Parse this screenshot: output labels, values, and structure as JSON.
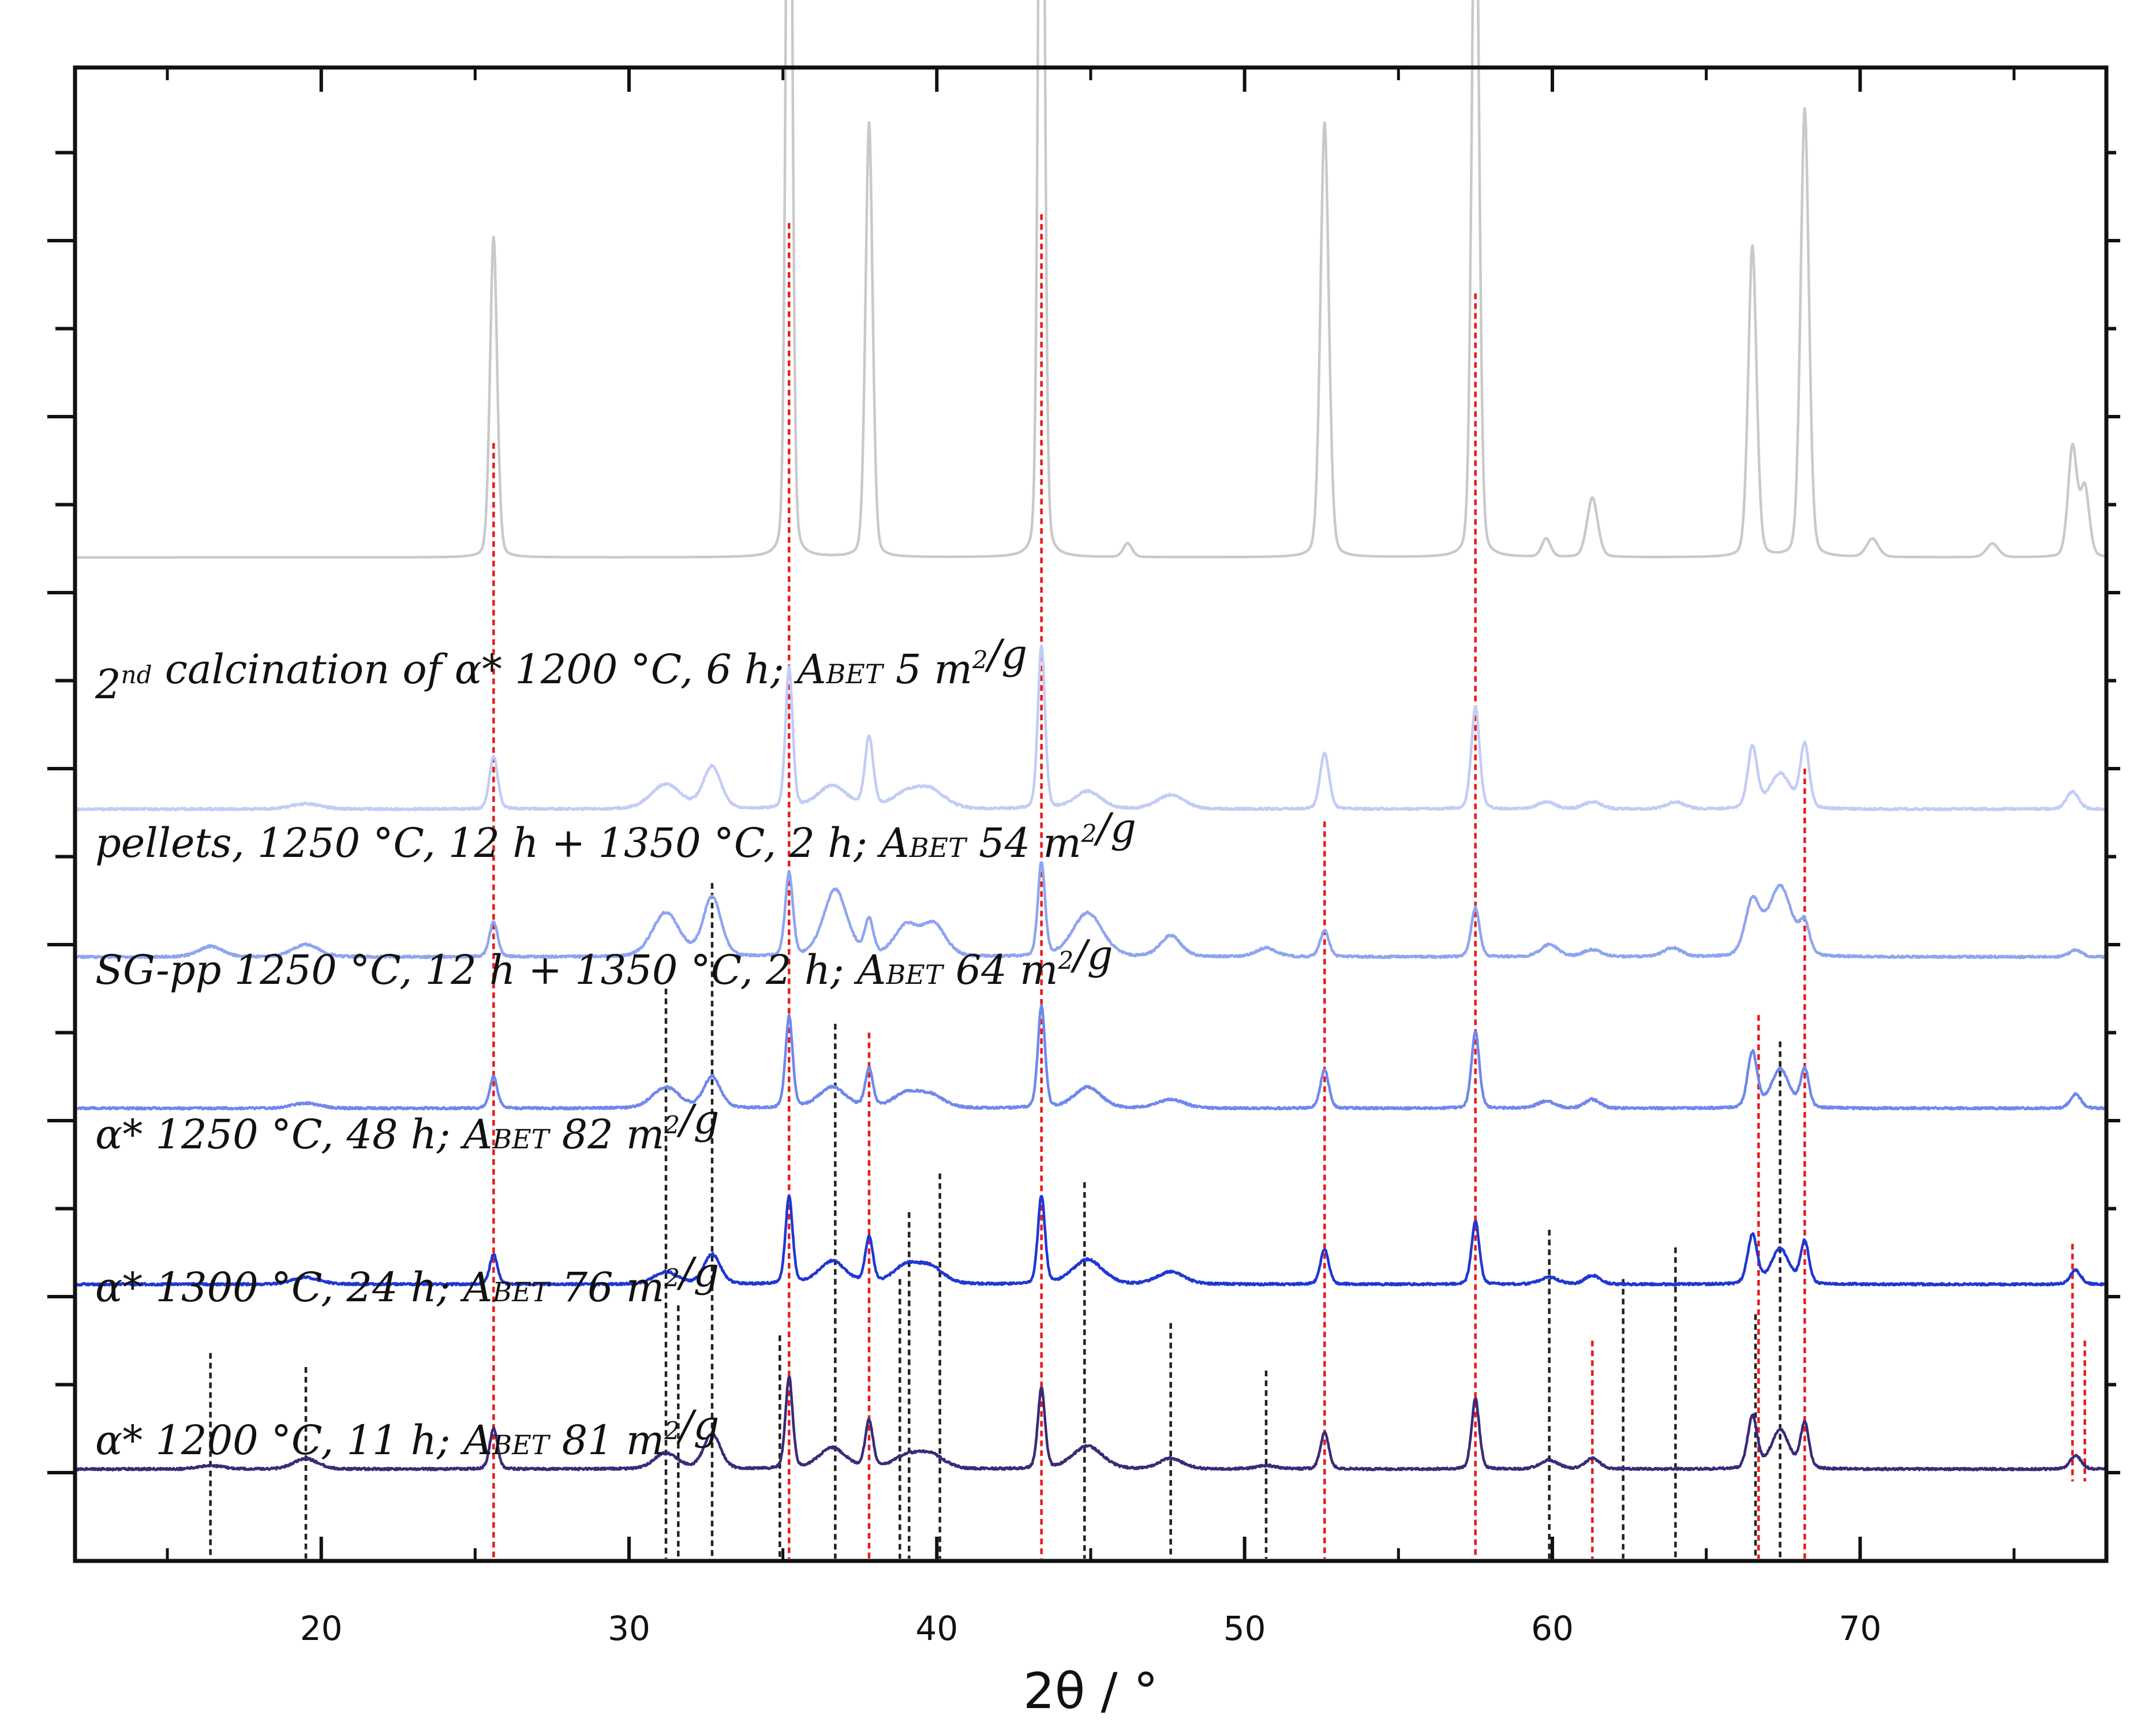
{
  "chart_data": {
    "type": "line",
    "title": "",
    "xlabel": "2θ / °",
    "ylabel": "",
    "xlim": [
      12,
      78
    ],
    "x_ticks": [
      20,
      30,
      40,
      50,
      60,
      70
    ],
    "x_minor_ticks": [
      15,
      25,
      35,
      45,
      55,
      65,
      75
    ],
    "y_ticks_shown": false,
    "grid": false,
    "legend": "labels written next to each trace",
    "colors": {
      "reference_red": "#e81c1c",
      "reference_black": "#222222"
    },
    "series": [
      {
        "name": "calcination",
        "label_parts": [
          "2",
          "nd",
          " calcination of α* 1200 °C, 6 h; A",
          "BET",
          " 5 m",
          "2",
          "/g"
        ],
        "color": "#c9c9c9",
        "offset": 5.2,
        "scale": 2.6,
        "background": 0.0,
        "peaks": [
          [
            25.6,
            0.7,
            0.12
          ],
          [
            35.2,
            2.2,
            0.1
          ],
          [
            37.8,
            0.95,
            0.12
          ],
          [
            43.4,
            2.3,
            0.1
          ],
          [
            46.2,
            0.03,
            0.15
          ],
          [
            52.6,
            0.95,
            0.14
          ],
          [
            57.5,
            1.65,
            0.12
          ],
          [
            59.8,
            0.04,
            0.15
          ],
          [
            61.3,
            0.13,
            0.18
          ],
          [
            66.5,
            0.68,
            0.14
          ],
          [
            68.2,
            0.98,
            0.14
          ],
          [
            70.4,
            0.04,
            0.2
          ],
          [
            74.3,
            0.03,
            0.2
          ],
          [
            76.9,
            0.24,
            0.15
          ],
          [
            77.3,
            0.15,
            0.15
          ]
        ]
      },
      {
        "name": "pellets",
        "label_parts": [
          "pellets, 1250 °C, 12 h + 1350 °C, 2 h; A",
          "BET",
          " 54 m",
          "2",
          "/g"
        ],
        "color": "#c2ccf6",
        "offset": 3.75,
        "scale": 1.0,
        "background": 0.02,
        "peaks": [
          [
            19.5,
            0.03,
            0.5
          ],
          [
            25.6,
            0.3,
            0.14
          ],
          [
            31.2,
            0.14,
            0.5
          ],
          [
            32.7,
            0.24,
            0.3
          ],
          [
            35.2,
            0.8,
            0.12
          ],
          [
            36.6,
            0.13,
            0.5
          ],
          [
            37.8,
            0.4,
            0.14
          ],
          [
            39.0,
            0.08,
            0.5
          ],
          [
            39.8,
            0.1,
            0.5
          ],
          [
            43.4,
            0.93,
            0.12
          ],
          [
            44.9,
            0.1,
            0.45
          ],
          [
            47.6,
            0.08,
            0.45
          ],
          [
            52.6,
            0.32,
            0.15
          ],
          [
            57.5,
            0.58,
            0.14
          ],
          [
            59.8,
            0.04,
            0.3
          ],
          [
            61.3,
            0.04,
            0.3
          ],
          [
            64.0,
            0.04,
            0.3
          ],
          [
            66.5,
            0.35,
            0.16
          ],
          [
            67.4,
            0.2,
            0.35
          ],
          [
            68.2,
            0.36,
            0.15
          ],
          [
            76.9,
            0.1,
            0.2
          ]
        ]
      },
      {
        "name": "SG-pp",
        "label_parts": [
          "SG-pp 1250 °C, 12 h + 1350 °C, 2 h; A",
          "BET",
          " 64 m",
          "2",
          "/g"
        ],
        "color": "#8ea4f0",
        "offset": 2.9,
        "scale": 1.0,
        "background": 0.03,
        "peaks": [
          [
            16.4,
            0.06,
            0.4
          ],
          [
            19.5,
            0.07,
            0.45
          ],
          [
            25.6,
            0.2,
            0.14
          ],
          [
            31.2,
            0.25,
            0.45
          ],
          [
            32.7,
            0.34,
            0.3
          ],
          [
            35.2,
            0.47,
            0.13
          ],
          [
            36.7,
            0.38,
            0.4
          ],
          [
            37.8,
            0.2,
            0.14
          ],
          [
            39.0,
            0.17,
            0.4
          ],
          [
            39.9,
            0.18,
            0.4
          ],
          [
            43.4,
            0.53,
            0.12
          ],
          [
            44.9,
            0.25,
            0.5
          ],
          [
            47.6,
            0.12,
            0.35
          ],
          [
            50.7,
            0.05,
            0.35
          ],
          [
            52.6,
            0.15,
            0.15
          ],
          [
            57.5,
            0.28,
            0.14
          ],
          [
            59.9,
            0.07,
            0.3
          ],
          [
            61.3,
            0.04,
            0.3
          ],
          [
            63.9,
            0.05,
            0.3
          ],
          [
            66.5,
            0.3,
            0.25
          ],
          [
            67.4,
            0.4,
            0.4
          ],
          [
            68.2,
            0.16,
            0.16
          ],
          [
            77.0,
            0.04,
            0.2
          ]
        ]
      },
      {
        "name": "a1250",
        "label_parts": [
          "α* 1250 °C, 48 h; A",
          "BET",
          " 82 m",
          "2",
          "/g"
        ],
        "color": "#6f88ec",
        "offset": 2.05,
        "scale": 1.0,
        "background": 0.02,
        "peaks": [
          [
            19.5,
            0.03,
            0.45
          ],
          [
            25.6,
            0.18,
            0.13
          ],
          [
            31.2,
            0.12,
            0.45
          ],
          [
            32.7,
            0.18,
            0.28
          ],
          [
            35.2,
            0.52,
            0.12
          ],
          [
            36.6,
            0.12,
            0.45
          ],
          [
            37.8,
            0.22,
            0.13
          ],
          [
            39.0,
            0.08,
            0.45
          ],
          [
            39.8,
            0.07,
            0.45
          ],
          [
            43.4,
            0.58,
            0.12
          ],
          [
            44.9,
            0.12,
            0.45
          ],
          [
            47.6,
            0.05,
            0.45
          ],
          [
            52.6,
            0.22,
            0.14
          ],
          [
            57.5,
            0.44,
            0.13
          ],
          [
            59.8,
            0.04,
            0.3
          ],
          [
            61.3,
            0.05,
            0.25
          ],
          [
            66.5,
            0.32,
            0.16
          ],
          [
            67.4,
            0.22,
            0.3
          ],
          [
            68.2,
            0.22,
            0.14
          ],
          [
            77.0,
            0.08,
            0.18
          ]
        ]
      },
      {
        "name": "a1300",
        "label_parts": [
          "α* 1300 °C, 24 h; A",
          "BET",
          " 76 m",
          "2",
          "/g"
        ],
        "color": "#1f37d2",
        "offset": 1.05,
        "scale": 1.0,
        "background": 0.02,
        "peaks": [
          [
            19.5,
            0.04,
            0.45
          ],
          [
            25.6,
            0.17,
            0.13
          ],
          [
            31.2,
            0.07,
            0.4
          ],
          [
            32.7,
            0.17,
            0.28
          ],
          [
            35.2,
            0.5,
            0.12
          ],
          [
            36.6,
            0.13,
            0.45
          ],
          [
            37.8,
            0.26,
            0.13
          ],
          [
            39.0,
            0.1,
            0.45
          ],
          [
            39.8,
            0.09,
            0.45
          ],
          [
            43.4,
            0.5,
            0.12
          ],
          [
            44.9,
            0.14,
            0.5
          ],
          [
            47.6,
            0.07,
            0.45
          ],
          [
            52.6,
            0.2,
            0.14
          ],
          [
            57.5,
            0.36,
            0.13
          ],
          [
            59.9,
            0.04,
            0.3
          ],
          [
            61.3,
            0.05,
            0.25
          ],
          [
            66.5,
            0.28,
            0.16
          ],
          [
            67.4,
            0.2,
            0.3
          ],
          [
            68.2,
            0.24,
            0.14
          ],
          [
            77.0,
            0.08,
            0.18
          ]
        ]
      },
      {
        "name": "a1200",
        "label_parts": [
          "α* 1200 °C, 11 h; A",
          "BET",
          " 81 m",
          "2",
          "/g"
        ],
        "color": "#3a2a78",
        "offset": 0.0,
        "scale": 1.0,
        "background": 0.02,
        "peaks": [
          [
            16.4,
            0.02,
            0.4
          ],
          [
            19.5,
            0.06,
            0.4
          ],
          [
            25.6,
            0.23,
            0.13
          ],
          [
            31.2,
            0.09,
            0.4
          ],
          [
            32.7,
            0.2,
            0.28
          ],
          [
            35.2,
            0.52,
            0.12
          ],
          [
            36.6,
            0.12,
            0.45
          ],
          [
            37.8,
            0.27,
            0.13
          ],
          [
            39.0,
            0.07,
            0.45
          ],
          [
            39.8,
            0.08,
            0.45
          ],
          [
            43.4,
            0.46,
            0.12
          ],
          [
            44.9,
            0.13,
            0.5
          ],
          [
            47.6,
            0.06,
            0.4
          ],
          [
            50.7,
            0.02,
            0.35
          ],
          [
            52.6,
            0.21,
            0.14
          ],
          [
            57.5,
            0.4,
            0.13
          ],
          [
            59.9,
            0.05,
            0.3
          ],
          [
            61.3,
            0.06,
            0.25
          ],
          [
            66.5,
            0.3,
            0.16
          ],
          [
            67.4,
            0.22,
            0.3
          ],
          [
            68.2,
            0.26,
            0.14
          ],
          [
            77.0,
            0.08,
            0.18
          ]
        ]
      }
    ],
    "reference_lines_red": [
      [
        25.6,
        5.85,
        -0.5
      ],
      [
        35.2,
        7.1,
        -0.5
      ],
      [
        37.8,
        2.5,
        -0.5
      ],
      [
        43.4,
        7.15,
        -0.5
      ],
      [
        52.6,
        3.7,
        -0.5
      ],
      [
        57.5,
        6.7,
        -0.5
      ],
      [
        61.3,
        0.75,
        -0.5
      ],
      [
        66.7,
        2.6,
        -0.5
      ],
      [
        68.2,
        4.0,
        -0.5
      ],
      [
        76.9,
        1.3,
        -0.05
      ],
      [
        77.3,
        0.75,
        -0.05
      ]
    ],
    "reference_lines_black": [
      [
        16.4,
        0.68,
        -0.5
      ],
      [
        19.5,
        0.6,
        -0.5
      ],
      [
        31.2,
        2.75,
        -0.5
      ],
      [
        31.6,
        0.95,
        -0.5
      ],
      [
        32.7,
        3.35,
        -0.5
      ],
      [
        34.9,
        0.78,
        -0.5
      ],
      [
        36.7,
        2.55,
        -0.5
      ],
      [
        38.8,
        1.1,
        -0.5
      ],
      [
        39.1,
        1.48,
        -0.5
      ],
      [
        40.1,
        1.7,
        -0.5
      ],
      [
        44.8,
        1.65,
        -0.5
      ],
      [
        47.6,
        0.85,
        -0.5
      ],
      [
        50.7,
        0.58,
        -0.5
      ],
      [
        59.9,
        1.38,
        -0.5
      ],
      [
        62.3,
        1.1,
        -0.5
      ],
      [
        64.0,
        1.28,
        -0.5
      ],
      [
        66.6,
        0.9,
        -0.5
      ],
      [
        67.4,
        2.45,
        -0.5
      ]
    ]
  }
}
